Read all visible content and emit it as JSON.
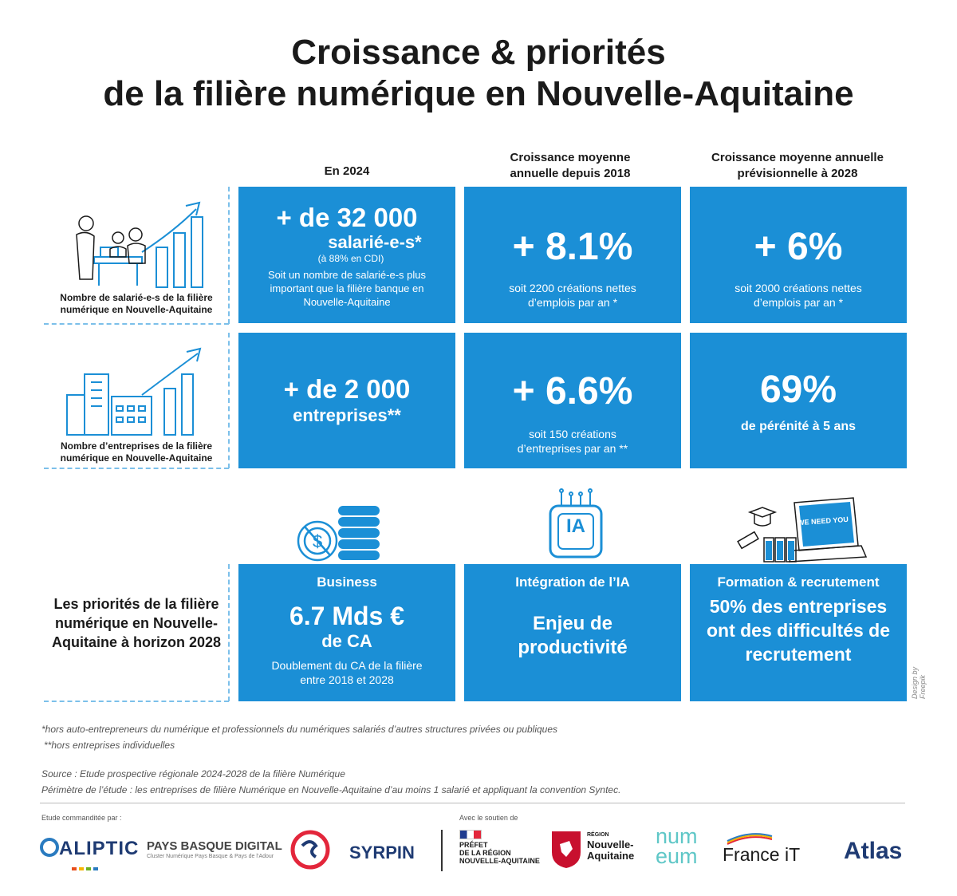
{
  "title": {
    "line1": "Croissance & priorités",
    "line2": "de la filière numérique en Nouvelle-Aquitaine"
  },
  "columns": {
    "c1": "En 2024",
    "c2": "Croissance moyenne annuelle depuis 2018",
    "c3": "Croissance moyenne annuelle prévisionnelle à 2028"
  },
  "row1": {
    "label": "Nombre de salarié-e-s de la filière numérique en Nouvelle-Aquitaine",
    "card1": {
      "big": "+ de 32 000",
      "sub": "salarié-e-s*",
      "cdi": "(à 88% en CDI)",
      "text": "Soit un nombre de salarié-e-s plus important que la filière banque en Nouvelle-Aquitaine"
    },
    "card2": {
      "big": "+ 8.1%",
      "text": "soit 2200 créations nettes d’emplois par an *"
    },
    "card3": {
      "big": "+ 6%",
      "text": "soit 2000 créations nettes d’emplois par an *"
    }
  },
  "row2": {
    "label": "Nombre d’entreprises de la filière numérique en Nouvelle-Aquitaine",
    "card1": {
      "big": "+ de 2 000",
      "sub": "entreprises**"
    },
    "card2": {
      "big": "+ 6.6%",
      "text": "soit 150 créations d’entreprises par an **"
    },
    "card3": {
      "big": "69%",
      "sub": "de pérénité à 5 ans"
    }
  },
  "row3": {
    "label": "Les priorités de la filière numérique en Nouvelle-Aquitaine à horizon 2028",
    "card1": {
      "head": "Business",
      "big": "6.7 Mds €",
      "sub": "de CA",
      "text": "Doublement du CA de la filière entre 2018 et 2028"
    },
    "card2": {
      "head": "Intégration de l’IA",
      "big": "Enjeu de productivité"
    },
    "card3": {
      "head": "Formation & recrutement",
      "big": "50% des entreprises ont des difficultés de recrutement"
    },
    "laptop_text": "WE NEED YOU",
    "ia_text": "IA"
  },
  "design_credit": "Design by Freepik",
  "notes": {
    "n1": "*hors auto-entrepreneurs du numérique et professionnels du numériques salariés d’autres structures privées ou publiques",
    "n2": "**hors entreprises individuelles",
    "source": "Source : Etude prospective régionale 2024-2028 de la filière Numérique",
    "perimetre": "Périmètre de l’étude : les entreprises de filière Numérique en Nouvelle-Aquitaine d’au moins 1 salarié et appliquant la convention Syntec."
  },
  "footer": {
    "commanditee": "Etude commanditée par :",
    "soutien": "Avec le soutien de",
    "logos": {
      "aliptic": "ALIPTIC",
      "pbd": "PAYS BASQUE DIGITAL",
      "pbd_sub": "Cluster Numérique Pays Basque & Pays de l’Adour",
      "syrpin": "SYRPIN",
      "prefet1": "PRÉFET",
      "prefet2": "DE LA RÉGION",
      "prefet3": "NOUVELLE-AQUITAINE",
      "region_small": "RÉGION",
      "region1": "Nouvelle-",
      "region2": "Aquitaine",
      "numeum1": "num",
      "numeum2": "eum",
      "franceit": "France iT",
      "atlas": "Atlas"
    }
  },
  "colors": {
    "card": "#1b8fd6",
    "dash": "#7cc0ea"
  }
}
